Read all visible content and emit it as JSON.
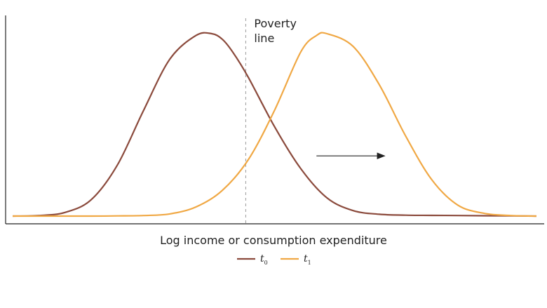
{
  "chart_data": {
    "type": "line",
    "title": "",
    "xlabel": "Log income or consumption expenditure",
    "ylabel": "",
    "x_ticks_shown": false,
    "y_ticks_shown": false,
    "grid": false,
    "legend_placement": "bottom-center",
    "xlim": [
      0,
      10
    ],
    "ylim": [
      0,
      1.05
    ],
    "series": [
      {
        "name": "t0",
        "name_base": "t",
        "name_sub": "0",
        "color": "#8b4a3c",
        "x": [
          0.0,
          0.5,
          1.0,
          1.5,
          2.0,
          2.5,
          3.0,
          3.5,
          3.8,
          4.0,
          4.2,
          4.5,
          5.0,
          5.5,
          6.0,
          6.5,
          7.0,
          7.5,
          8.0,
          8.5,
          9.0,
          9.5,
          10.0
        ],
        "y": [
          0.0,
          0.003,
          0.02,
          0.09,
          0.28,
          0.58,
          0.86,
          0.99,
          1.0,
          0.97,
          0.9,
          0.76,
          0.49,
          0.26,
          0.1,
          0.03,
          0.01,
          0.005,
          0.004,
          0.003,
          0.002,
          0.001,
          0.0
        ]
      },
      {
        "name": "t1",
        "name_base": "t",
        "name_sub": "1",
        "color": "#f0a844",
        "x": [
          0.0,
          0.5,
          1.0,
          1.5,
          2.0,
          2.5,
          3.0,
          3.5,
          4.0,
          4.5,
          5.0,
          5.5,
          5.8,
          6.0,
          6.5,
          7.0,
          7.5,
          8.0,
          8.5,
          9.0,
          9.5,
          10.0
        ],
        "y": [
          0.0,
          0.0,
          0.0,
          0.0,
          0.001,
          0.003,
          0.012,
          0.05,
          0.14,
          0.31,
          0.58,
          0.9,
          0.99,
          1.0,
          0.93,
          0.72,
          0.44,
          0.2,
          0.06,
          0.015,
          0.003,
          0.0
        ]
      }
    ],
    "poverty_line_x": 4.45,
    "annotations": [
      {
        "text_line1": "Poverty",
        "text_line2": "line"
      }
    ],
    "shift_arrow": {
      "from_x": 5.8,
      "to_x": 7.1,
      "y": 0.33,
      "color": "#222222"
    }
  }
}
